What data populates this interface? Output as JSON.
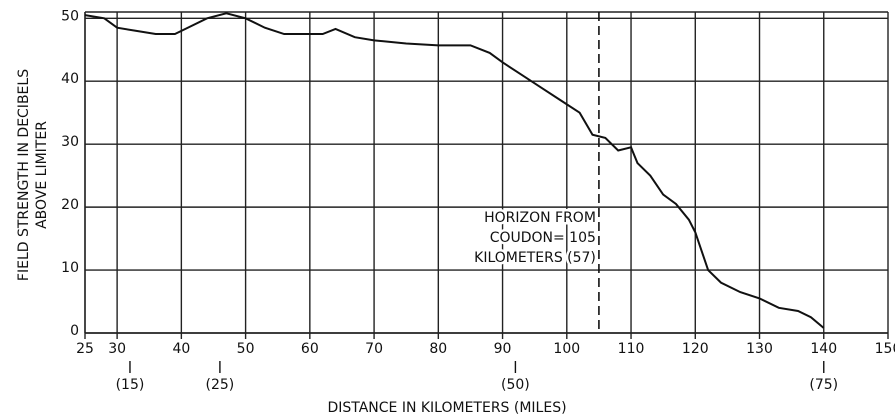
{
  "chart_data": {
    "type": "line",
    "ylabel": [
      "FIELD STRENGTH IN DECIBELS",
      "ABOVE LIMITER"
    ],
    "xlabel": "DISTANCE IN KILOMETERS (MILES)",
    "x": [
      25,
      28,
      30,
      33,
      36,
      39,
      41,
      44,
      47,
      50,
      53,
      56,
      59,
      62,
      64,
      67,
      70,
      75,
      80,
      85,
      88,
      90,
      93,
      96,
      99,
      102,
      104,
      106,
      108,
      110,
      111,
      113,
      115,
      117,
      119,
      120,
      121,
      122,
      124,
      127,
      130,
      133,
      136,
      138,
      140
    ],
    "series": [
      {
        "color": "#111111",
        "values": [
          50.5,
          50,
          48.5,
          48,
          47.5,
          47.5,
          48.5,
          50,
          50.8,
          50,
          48.5,
          47.5,
          47.5,
          47.5,
          48.3,
          47,
          46.5,
          46,
          45.7,
          45.7,
          44.5,
          43,
          41,
          39,
          37,
          35,
          31.5,
          31,
          29,
          29.5,
          27,
          25,
          22,
          20.5,
          18,
          16,
          13,
          10,
          8,
          6.5,
          5.5,
          4,
          3.5,
          2.5,
          0.8
        ]
      }
    ],
    "xlim": [
      25,
      150
    ],
    "ylim": [
      0,
      51
    ],
    "xticks": [
      25,
      30,
      40,
      50,
      60,
      70,
      80,
      90,
      100,
      110,
      120,
      130,
      140,
      150
    ],
    "x2ticks": [
      {
        "value": 32,
        "label": "(15)"
      },
      {
        "value": 46,
        "label": "(25)"
      },
      {
        "value": 92,
        "label": "(50)"
      },
      {
        "value": 140,
        "label": "(75)"
      }
    ],
    "yticks": [
      0,
      10,
      20,
      30,
      40,
      50
    ],
    "grid": true,
    "annotation": {
      "x": 105,
      "lines": [
        "HORIZON FROM",
        "COUDON= 105",
        "KILOMETERS (57)"
      ]
    }
  }
}
